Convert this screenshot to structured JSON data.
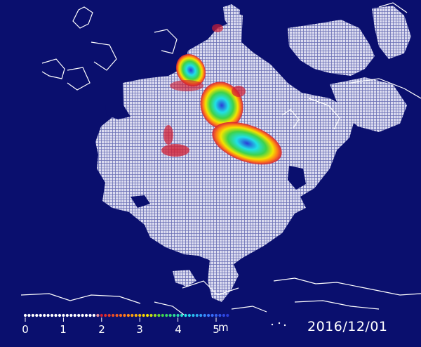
{
  "date": "2016/12/01",
  "colorbar": {
    "ticks": [
      "0",
      "1",
      "2",
      "3",
      "4",
      "5"
    ],
    "unit": "m",
    "stops": [
      {
        "value": 0,
        "color": "#ffffff"
      },
      {
        "value": 1.8,
        "color": "#ffffff"
      },
      {
        "value": 2,
        "color": "#d21e32"
      },
      {
        "value": 2.6,
        "color": "#ff7a1a"
      },
      {
        "value": 3.2,
        "color": "#f2e400"
      },
      {
        "value": 3.6,
        "color": "#3ed24a"
      },
      {
        "value": 4.2,
        "color": "#20e0e6"
      },
      {
        "value": 4.8,
        "color": "#3a78ff"
      },
      {
        "value": 5.3,
        "color": "#2a3cd8"
      }
    ]
  },
  "colors": {
    "ocean": "#0a0f6e",
    "ice": "#dcdcf0",
    "coast": "#ffffff"
  }
}
